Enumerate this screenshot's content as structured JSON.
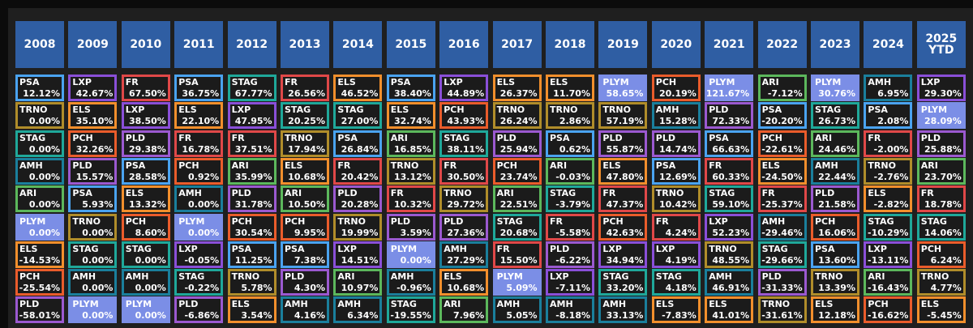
{
  "colors": {
    "header_bg": "#2f5ea3",
    "PSA": "#4aa3f0",
    "LXP": "#8a4fd8",
    "FR": "#e04848",
    "STAG": "#1fa89a",
    "ELS": "#f28f2c",
    "PCH": "#ea5c2b",
    "PLYM": "#7b8ee6",
    "ARI": "#5cb85c",
    "AMH": "#1a7f9c",
    "TRNO": "#b08d2a",
    "PLD": "#9b59d0"
  },
  "chart_data": {
    "type": "table",
    "years": [
      "2008",
      "2009",
      "2010",
      "2011",
      "2012",
      "2013",
      "2014",
      "2015",
      "2016",
      "2017",
      "2018",
      "2019",
      "2020",
      "2021",
      "2022",
      "2023",
      "2024",
      "2025\nYTD"
    ],
    "columns": [
      [
        [
          "PSA",
          "12.12%"
        ],
        [
          "TRNO",
          "0.00%"
        ],
        [
          "STAG",
          "0.00%"
        ],
        [
          "AMH",
          "0.00%"
        ],
        [
          "ARI",
          "0.00%"
        ],
        [
          "PLYM",
          "0.00%"
        ],
        [
          "ELS",
          "-14.53%"
        ],
        [
          "PCH",
          "-25.54%"
        ],
        [
          "PLD",
          "-58.01%"
        ]
      ],
      [
        [
          "LXP",
          "42.67%"
        ],
        [
          "ELS",
          "35.10%"
        ],
        [
          "PCH",
          "32.26%"
        ],
        [
          "PLD",
          "15.57%"
        ],
        [
          "PSA",
          "5.93%"
        ],
        [
          "TRNO",
          "0.00%"
        ],
        [
          "STAG",
          "0.00%"
        ],
        [
          "AMH",
          "0.00%"
        ],
        [
          "PLYM",
          "0.00%"
        ]
      ],
      [
        [
          "FR",
          "67.50%"
        ],
        [
          "LXP",
          "38.50%"
        ],
        [
          "PLD",
          "29.38%"
        ],
        [
          "PSA",
          "28.58%"
        ],
        [
          "ELS",
          "13.32%"
        ],
        [
          "PCH",
          "8.60%"
        ],
        [
          "STAG",
          "0.00%"
        ],
        [
          "AMH",
          "0.00%"
        ],
        [
          "PLYM",
          "0.00%"
        ]
      ],
      [
        [
          "PSA",
          "36.75%"
        ],
        [
          "ELS",
          "22.10%"
        ],
        [
          "FR",
          "16.78%"
        ],
        [
          "PCH",
          "0.92%"
        ],
        [
          "AMH",
          "0.00%"
        ],
        [
          "PLYM",
          "0.00%"
        ],
        [
          "LXP",
          "-0.05%"
        ],
        [
          "STAG",
          "-0.22%"
        ],
        [
          "PLD",
          "-6.86%"
        ]
      ],
      [
        [
          "STAG",
          "67.77%"
        ],
        [
          "LXP",
          "47.95%"
        ],
        [
          "FR",
          "37.51%"
        ],
        [
          "ARI",
          "35.99%"
        ],
        [
          "PLD",
          "31.78%"
        ],
        [
          "PCH",
          "30.54%"
        ],
        [
          "PSA",
          "11.25%"
        ],
        [
          "TRNO",
          "5.78%"
        ],
        [
          "ELS",
          "3.54%"
        ]
      ],
      [
        [
          "FR",
          "26.56%"
        ],
        [
          "STAG",
          "20.25%"
        ],
        [
          "TRNO",
          "17.94%"
        ],
        [
          "ELS",
          "10.68%"
        ],
        [
          "ARI",
          "10.50%"
        ],
        [
          "PCH",
          "9.95%"
        ],
        [
          "PSA",
          "7.38%"
        ],
        [
          "PLD",
          "4.30%"
        ],
        [
          "AMH",
          "4.16%"
        ]
      ],
      [
        [
          "ELS",
          "46.52%"
        ],
        [
          "STAG",
          "27.00%"
        ],
        [
          "PSA",
          "26.84%"
        ],
        [
          "FR",
          "20.42%"
        ],
        [
          "PLD",
          "20.28%"
        ],
        [
          "TRNO",
          "19.99%"
        ],
        [
          "LXP",
          "14.51%"
        ],
        [
          "ARI",
          "10.97%"
        ],
        [
          "AMH",
          "6.34%"
        ]
      ],
      [
        [
          "PSA",
          "38.40%"
        ],
        [
          "ELS",
          "32.74%"
        ],
        [
          "ARI",
          "16.85%"
        ],
        [
          "TRNO",
          "13.12%"
        ],
        [
          "FR",
          "10.32%"
        ],
        [
          "PLD",
          "3.59%"
        ],
        [
          "PLYM",
          "0.00%"
        ],
        [
          "AMH",
          "-0.96%"
        ],
        [
          "STAG",
          "-19.55%"
        ]
      ],
      [
        [
          "LXP",
          "44.89%"
        ],
        [
          "PCH",
          "43.93%"
        ],
        [
          "STAG",
          "38.11%"
        ],
        [
          "FR",
          "30.50%"
        ],
        [
          "TRNO",
          "29.72%"
        ],
        [
          "PLD",
          "27.36%"
        ],
        [
          "AMH",
          "27.29%"
        ],
        [
          "ELS",
          "10.68%"
        ],
        [
          "ARI",
          "7.96%"
        ]
      ],
      [
        [
          "ELS",
          "26.37%"
        ],
        [
          "TRNO",
          "26.24%"
        ],
        [
          "PLD",
          "25.94%"
        ],
        [
          "PCH",
          "23.74%"
        ],
        [
          "ARI",
          "22.51%"
        ],
        [
          "STAG",
          "20.68%"
        ],
        [
          "FR",
          "15.50%"
        ],
        [
          "PLYM",
          "5.09%"
        ],
        [
          "AMH",
          "5.05%"
        ]
      ],
      [
        [
          "ELS",
          "11.70%"
        ],
        [
          "TRNO",
          "2.86%"
        ],
        [
          "PSA",
          "0.62%"
        ],
        [
          "ARI",
          "-0.03%"
        ],
        [
          "STAG",
          "-3.79%"
        ],
        [
          "FR",
          "-5.58%"
        ],
        [
          "PLD",
          "-6.22%"
        ],
        [
          "LXP",
          "-7.11%"
        ],
        [
          "AMH",
          "-8.18%"
        ]
      ],
      [
        [
          "PLYM",
          "58.65%"
        ],
        [
          "TRNO",
          "57.19%"
        ],
        [
          "PLD",
          "55.87%"
        ],
        [
          "ELS",
          "47.80%"
        ],
        [
          "FR",
          "47.37%"
        ],
        [
          "PCH",
          "42.63%"
        ],
        [
          "LXP",
          "34.94%"
        ],
        [
          "STAG",
          "33.20%"
        ],
        [
          "AMH",
          "33.13%"
        ]
      ],
      [
        [
          "PCH",
          "20.19%"
        ],
        [
          "AMH",
          "15.28%"
        ],
        [
          "PLD",
          "14.74%"
        ],
        [
          "PSA",
          "12.69%"
        ],
        [
          "TRNO",
          "10.42%"
        ],
        [
          "FR",
          "4.24%"
        ],
        [
          "LXP",
          "4.19%"
        ],
        [
          "STAG",
          "4.18%"
        ],
        [
          "ELS",
          "-7.83%"
        ]
      ],
      [
        [
          "PLYM",
          "121.67%"
        ],
        [
          "PLD",
          "72.33%"
        ],
        [
          "PSA",
          "66.63%"
        ],
        [
          "FR",
          "60.33%"
        ],
        [
          "STAG",
          "59.10%"
        ],
        [
          "LXP",
          "52.23%"
        ],
        [
          "TRNO",
          "48.55%"
        ],
        [
          "AMH",
          "46.91%"
        ],
        [
          "ELS",
          "41.01%"
        ]
      ],
      [
        [
          "ARI",
          "-7.12%"
        ],
        [
          "PSA",
          "-20.20%"
        ],
        [
          "PCH",
          "-22.61%"
        ],
        [
          "ELS",
          "-24.50%"
        ],
        [
          "FR",
          "-25.37%"
        ],
        [
          "AMH",
          "-29.46%"
        ],
        [
          "STAG",
          "-29.66%"
        ],
        [
          "PLD",
          "-31.33%"
        ],
        [
          "TRNO",
          "-31.61%"
        ]
      ],
      [
        [
          "PLYM",
          "30.76%"
        ],
        [
          "STAG",
          "26.73%"
        ],
        [
          "ARI",
          "24.46%"
        ],
        [
          "AMH",
          "22.44%"
        ],
        [
          "PLD",
          "21.58%"
        ],
        [
          "PCH",
          "16.06%"
        ],
        [
          "PSA",
          "13.60%"
        ],
        [
          "TRNO",
          "13.39%"
        ],
        [
          "ELS",
          "12.18%"
        ]
      ],
      [
        [
          "AMH",
          "6.95%"
        ],
        [
          "PSA",
          "2.08%"
        ],
        [
          "FR",
          "-2.00%"
        ],
        [
          "TRNO",
          "-2.76%"
        ],
        [
          "ELS",
          "-2.82%"
        ],
        [
          "STAG",
          "-10.29%"
        ],
        [
          "LXP",
          "-13.11%"
        ],
        [
          "ARI",
          "-16.43%"
        ],
        [
          "PCH",
          "-16.62%"
        ]
      ],
      [
        [
          "LXP",
          "29.30%"
        ],
        [
          "PLYM",
          "28.09%"
        ],
        [
          "PLD",
          "25.88%"
        ],
        [
          "ARI",
          "23.70%"
        ],
        [
          "FR",
          "18.78%"
        ],
        [
          "STAG",
          "14.06%"
        ],
        [
          "PCH",
          "6.24%"
        ],
        [
          "TRNO",
          "4.77%"
        ],
        [
          "ELS",
          "-5.45%"
        ]
      ]
    ]
  }
}
